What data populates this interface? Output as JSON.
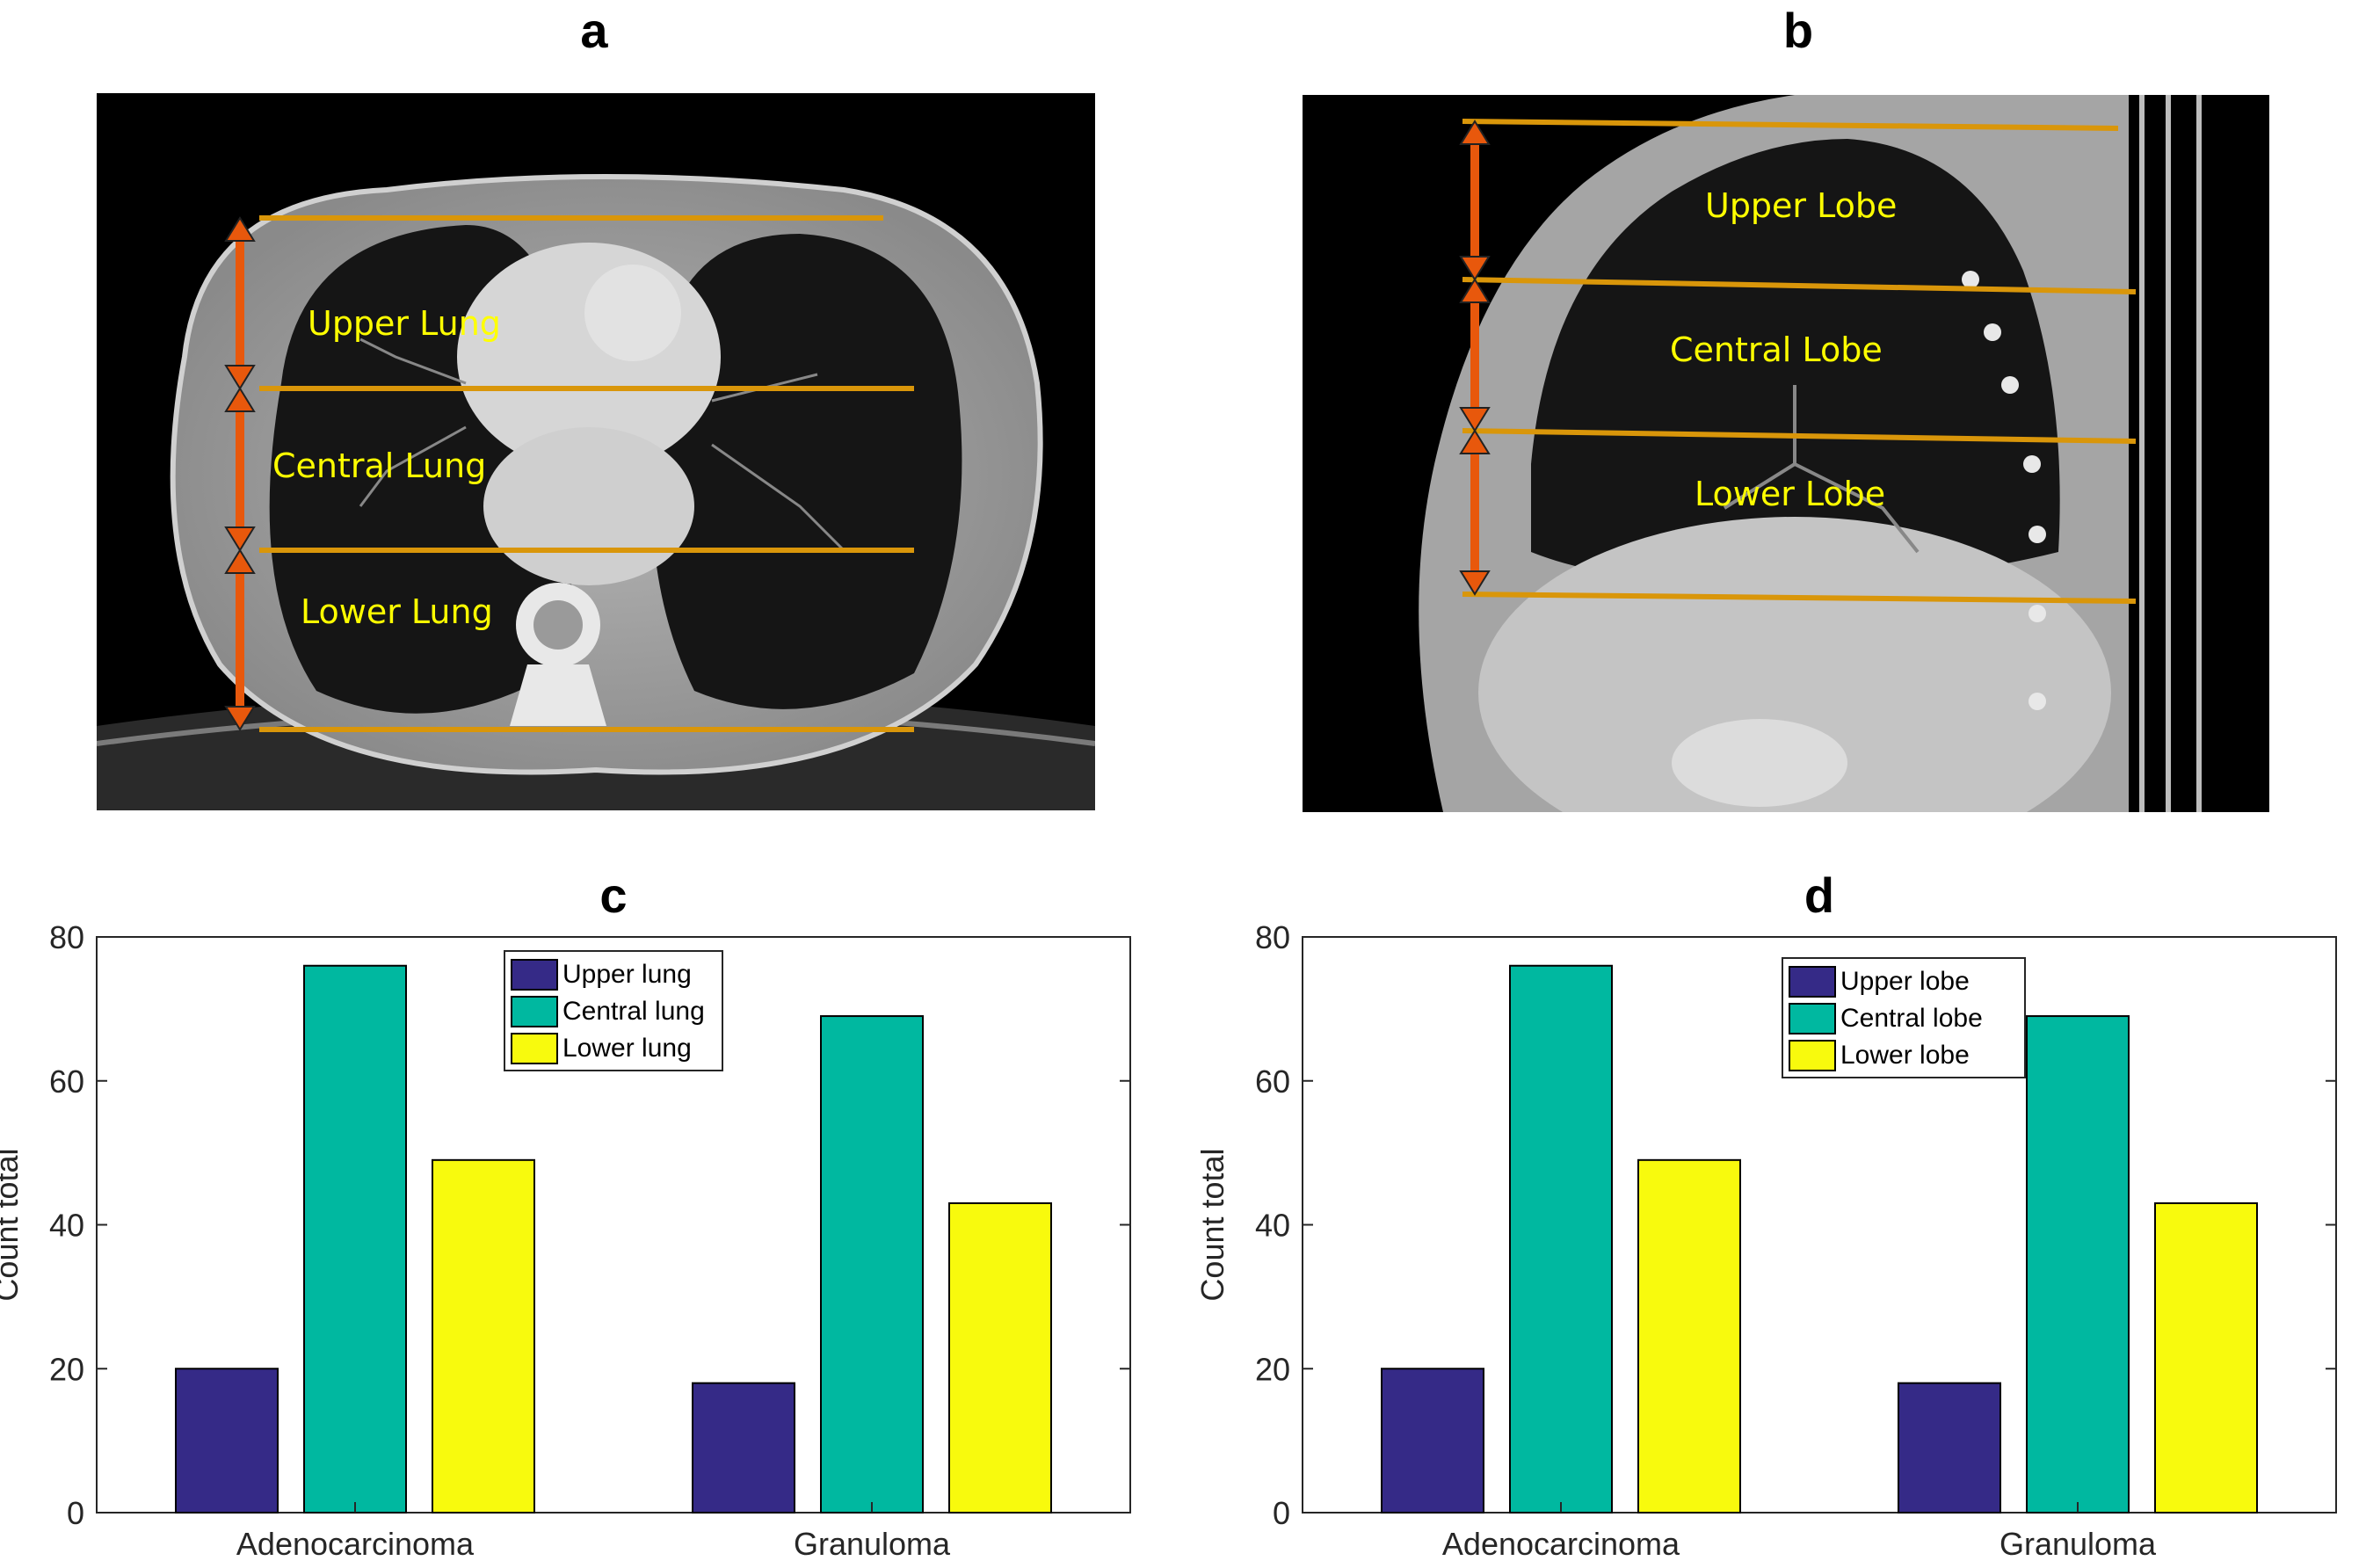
{
  "panels": {
    "a": "a",
    "b": "b",
    "c": "c",
    "d": "d"
  },
  "ct_axial": {
    "labels": [
      "Upper Lung",
      "Central Lung",
      "Lower Lung"
    ],
    "line_color": "#d9960a",
    "arrow_color": "#e8580c"
  },
  "ct_sagittal": {
    "labels": [
      "Upper Lobe",
      "Central Lobe",
      "Lower Lobe"
    ],
    "line_color": "#d9960a",
    "arrow_color": "#e8580c"
  },
  "chart_data": [
    {
      "type": "bar",
      "title": "c",
      "categories": [
        "Adenocarcinoma",
        "Granuloma"
      ],
      "series": [
        {
          "name": "Upper lung",
          "values": [
            20,
            18
          ],
          "color": "#352a87"
        },
        {
          "name": "Central lung",
          "values": [
            76,
            69
          ],
          "color": "#00b8a0"
        },
        {
          "name": "Lower lung",
          "values": [
            49,
            43
          ],
          "color": "#f8fa0d"
        }
      ],
      "xlabel": "",
      "ylabel": "Count total",
      "ylim": [
        0,
        80
      ],
      "yticks": [
        0,
        20,
        40,
        60,
        80
      ],
      "grid": false,
      "legend": "top-center"
    },
    {
      "type": "bar",
      "title": "d",
      "categories": [
        "Adenocarcinoma",
        "Granuloma"
      ],
      "series": [
        {
          "name": "Upper lobe",
          "values": [
            20,
            18
          ],
          "color": "#352a87"
        },
        {
          "name": "Central lobe",
          "values": [
            76,
            69
          ],
          "color": "#00b8a0"
        },
        {
          "name": "Lower lobe",
          "values": [
            49,
            43
          ],
          "color": "#f8fa0d"
        }
      ],
      "xlabel": "",
      "ylabel": "Count total",
      "ylim": [
        0,
        80
      ],
      "yticks": [
        0,
        20,
        40,
        60,
        80
      ],
      "grid": false,
      "legend": "top-center"
    }
  ]
}
